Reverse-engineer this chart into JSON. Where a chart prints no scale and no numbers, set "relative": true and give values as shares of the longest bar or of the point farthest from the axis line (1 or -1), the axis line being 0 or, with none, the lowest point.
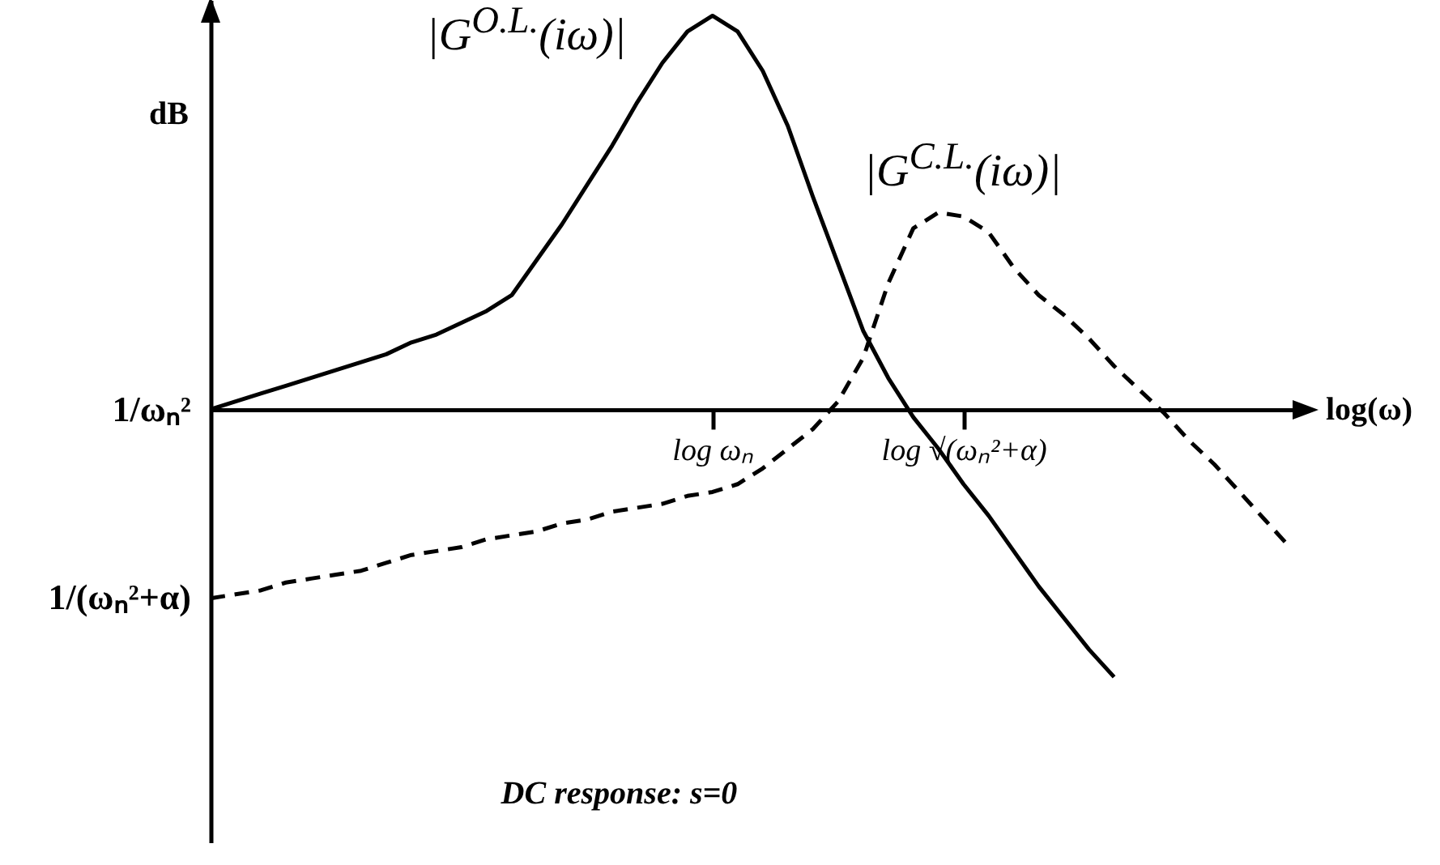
{
  "chart_data": {
    "type": "line",
    "relative": true,
    "xlabel": "log(ω)",
    "ylabel": "dB",
    "categories": [
      null,
      null,
      null,
      null,
      null,
      null,
      null,
      null,
      null,
      null,
      null,
      null,
      null,
      null,
      null,
      null,
      null,
      null,
      null,
      null,
      "log ωₙ",
      null,
      null,
      null,
      null,
      null,
      null,
      null,
      null,
      null,
      "log √(ωₙ²+α)",
      null,
      null,
      null,
      null,
      null,
      null,
      null,
      null,
      null,
      null,
      null,
      null,
      null
    ],
    "series": [
      {
        "name": "|G$^{O.L.}$(iω)|",
        "color": "#000000",
        "line_style": "solid",
        "values": [
          0,
          0.02,
          0.04,
          0.06,
          0.08,
          0.1,
          0.12,
          0.14,
          0.17,
          0.19,
          0.22,
          0.25,
          0.29,
          0.38,
          0.47,
          0.57,
          0.67,
          0.78,
          0.88,
          0.96,
          1,
          0.96,
          0.86,
          0.72,
          0.54,
          0.37,
          0.2,
          0.08,
          -0.02,
          -0.1,
          -0.19,
          -0.27,
          -0.36,
          -0.45,
          -0.53,
          -0.61,
          -0.68,
          null,
          null,
          null,
          null,
          null,
          null,
          null
        ]
      },
      {
        "name": "|G$^{C.L.}$(iω)|",
        "color": "#000000",
        "line_style": "dashed",
        "values": [
          -0.48,
          -0.47,
          -0.46,
          -0.44,
          -0.43,
          -0.42,
          -0.41,
          -0.39,
          -0.37,
          -0.36,
          -0.35,
          -0.33,
          -0.32,
          -0.31,
          -0.29,
          -0.28,
          -0.26,
          -0.25,
          -0.24,
          -0.22,
          -0.21,
          -0.19,
          -0.15,
          -0.1,
          -0.05,
          0.02,
          0.13,
          0.32,
          0.46,
          0.5,
          0.49,
          0.45,
          0.36,
          0.29,
          0.24,
          0.18,
          0.11,
          0.05,
          -0.01,
          -0.08,
          -0.14,
          -0.21,
          -0.28,
          -0.35
        ]
      }
    ],
    "annotations": [
      "1/ωₙ²",
      "1/(ωₙ²+α)",
      "DC response: s=0"
    ]
  }
}
